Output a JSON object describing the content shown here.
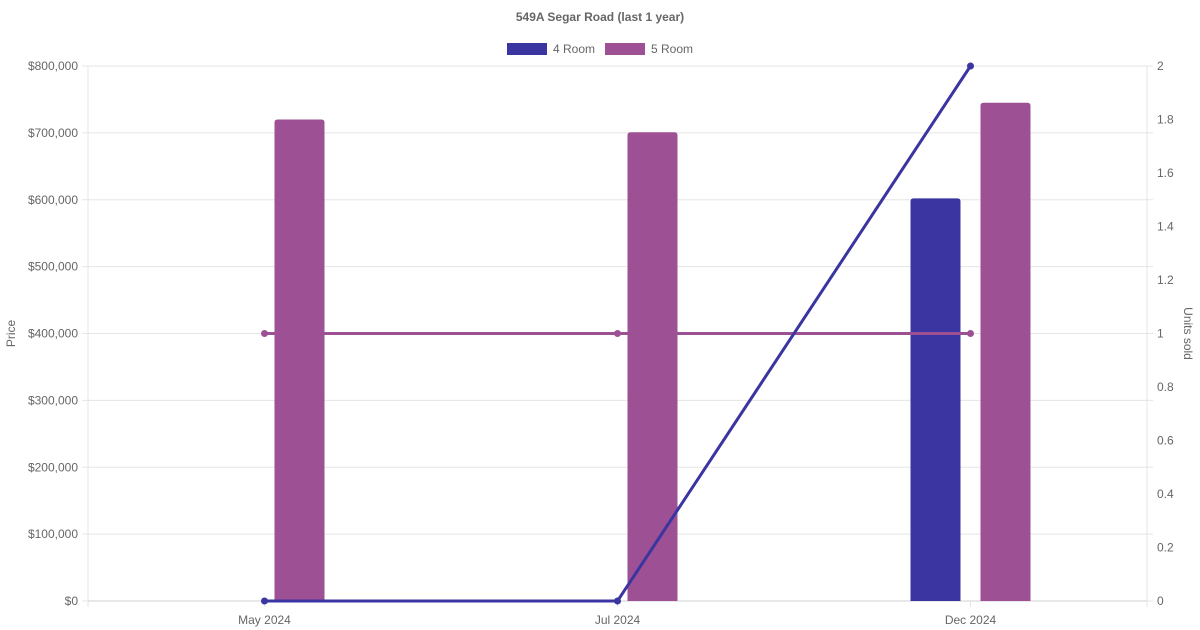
{
  "chart_data": {
    "type": "bar",
    "title": "549A Segar Road (last 1 year)",
    "categories": [
      "May 2024",
      "Jul 2024",
      "Dec 2024"
    ],
    "ylabel": "Price",
    "y2label": "Units sold",
    "ylim": [
      0,
      800000
    ],
    "y2lim": [
      0,
      2
    ],
    "y_ticks": [
      "$0",
      "$100,000",
      "$200,000",
      "$300,000",
      "$400,000",
      "$500,000",
      "$600,000",
      "$700,000",
      "$800,000"
    ],
    "y2_ticks": [
      "0",
      "0.2",
      "0.4",
      "0.6",
      "0.8",
      "1",
      "1.2",
      "1.4",
      "1.6",
      "1.8",
      "2"
    ],
    "grid": true,
    "legend_position": "top-center",
    "series": [
      {
        "name": "4 Room",
        "color": "#3a35a0",
        "price": [
          null,
          null,
          602000
        ],
        "units_sold": [
          0,
          0,
          2
        ]
      },
      {
        "name": "5 Room",
        "color": "#9e5094",
        "price": [
          720000,
          701000,
          745000
        ],
        "units_sold": [
          1,
          1,
          1
        ]
      }
    ]
  }
}
